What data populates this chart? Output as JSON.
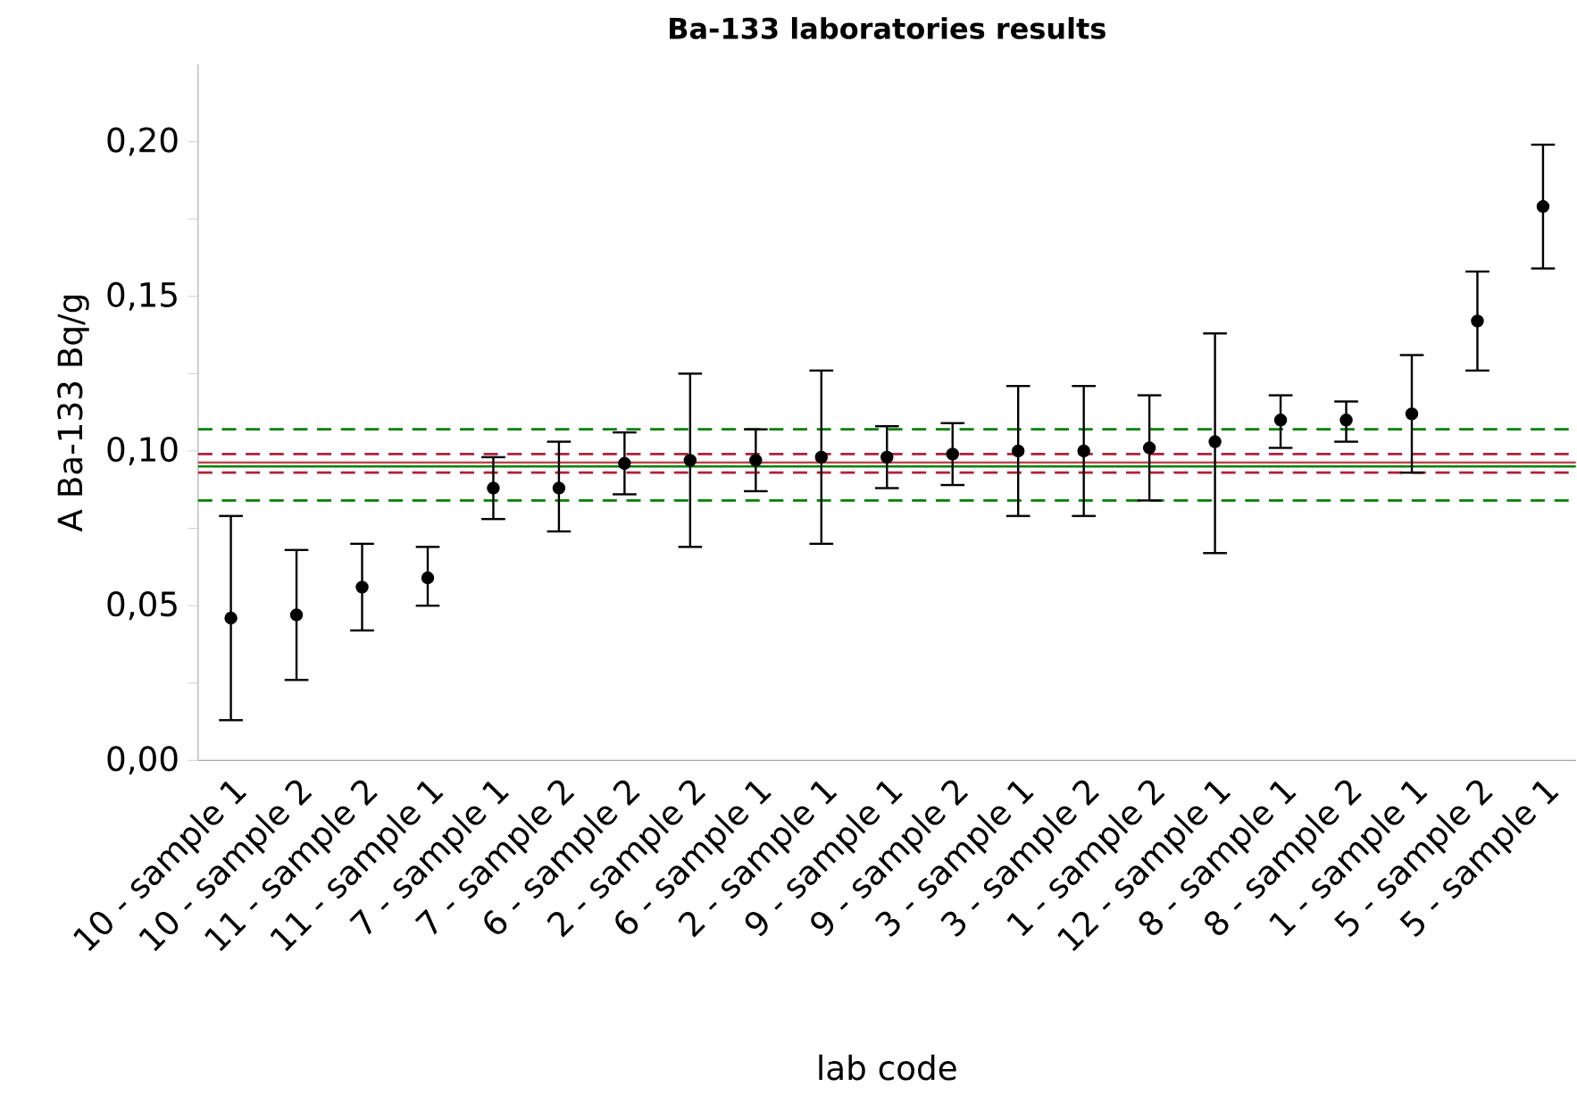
{
  "chart_data": {
    "type": "scatter",
    "title": "Ba-133 laboratories results",
    "xlabel": "lab code",
    "ylabel": "A Ba-133 Bq/g",
    "categories": [
      "10 - sample 1",
      "10 - sample 2",
      "11 - sample 2",
      "11 - sample 1",
      "7 - sample 1",
      "7 - sample 2",
      "6 - sample 2",
      "2 - sample 2",
      "6 - sample 1",
      "2 - sample 1",
      "9 - sample 1",
      "9 - sample 2",
      "3 - sample 1",
      "3 - sample 2",
      "1 - sample 2",
      "12 - sample 1",
      "8 - sample 1",
      "8 - sample 2",
      "1 - sample 1",
      "5 - sample 2",
      "5 - sample 1"
    ],
    "series": [
      {
        "color": "#000000",
        "values": [
          0.046,
          0.047,
          0.056,
          0.059,
          0.088,
          0.088,
          0.096,
          0.097,
          0.097,
          0.098,
          0.098,
          0.099,
          0.1,
          0.1,
          0.101,
          0.103,
          0.11,
          0.11,
          0.112,
          0.142,
          0.179
        ],
        "errors": [
          [
            0.013,
            0.079
          ],
          [
            0.026,
            0.068
          ],
          [
            0.042,
            0.07
          ],
          [
            0.05,
            0.069
          ],
          [
            0.078,
            0.098
          ],
          [
            0.074,
            0.103
          ],
          [
            0.086,
            0.106
          ],
          [
            0.069,
            0.125
          ],
          [
            0.087,
            0.107
          ],
          [
            0.07,
            0.126
          ],
          [
            0.088,
            0.108
          ],
          [
            0.089,
            0.109
          ],
          [
            0.079,
            0.121
          ],
          [
            0.079,
            0.121
          ],
          [
            0.084,
            0.118
          ],
          [
            0.067,
            0.138
          ],
          [
            0.101,
            0.118
          ],
          [
            0.103,
            0.116
          ],
          [
            0.093,
            0.131
          ],
          [
            0.126,
            0.158
          ],
          [
            0.159,
            0.199
          ]
        ]
      }
    ],
    "ylim": [
      0,
      0.225
    ],
    "yticks": [
      {
        "value": 0,
        "label": "0,00"
      },
      {
        "value": 0.025,
        "label": null
      },
      {
        "value": 0.05,
        "label": "0,05"
      },
      {
        "value": 0.075,
        "label": null
      },
      {
        "value": 0.1,
        "label": "0,10"
      },
      {
        "value": 0.125,
        "label": null
      },
      {
        "value": 0.15,
        "label": "0,15"
      },
      {
        "value": 0.175,
        "label": null
      },
      {
        "value": 0.2,
        "label": "0,20"
      }
    ],
    "marker": "circle",
    "grid": false,
    "ref_lines": [
      {
        "axis": "y",
        "value": 0.107,
        "color": "#008000",
        "line_style": "dashed"
      },
      {
        "axis": "y",
        "value": 0.084,
        "color": "#008000",
        "line_style": "dashed"
      },
      {
        "axis": "y",
        "value": 0.099,
        "color": "#b0203a",
        "line_style": "dashed"
      },
      {
        "axis": "y",
        "value": 0.093,
        "color": "#b0203a",
        "line_style": "dashed"
      },
      {
        "axis": "y",
        "value": 0.0963,
        "color": "#c0404f",
        "line_style": "solid"
      },
      {
        "axis": "y",
        "value": 0.095,
        "color": "#008000",
        "line_style": "solid"
      }
    ]
  }
}
